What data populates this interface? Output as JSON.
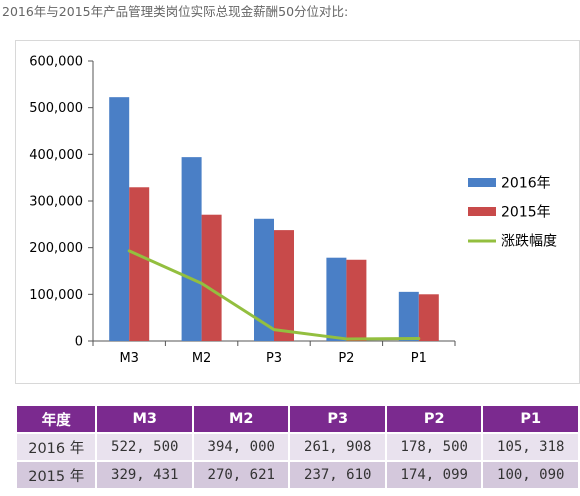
{
  "caption": "2016年与2015年产品管理类岗位实际总现金薪酬50分位对比:",
  "colors": {
    "s2016": "#4a7fc6",
    "s2015": "#c84a4a",
    "change": "#93bf3f",
    "table_header": "#7b2a8f"
  },
  "chart_data": {
    "type": "bar",
    "categories": [
      "M3",
      "M2",
      "P3",
      "P2",
      "P1"
    ],
    "series": [
      {
        "name": "2016年",
        "values": [
          522500,
          394000,
          261908,
          178500,
          105318
        ]
      },
      {
        "name": "2015年",
        "values": [
          329431,
          270621,
          237610,
          174099,
          100090
        ]
      }
    ],
    "line_series": {
      "name": "涨跌幅度",
      "values": [
        193069,
        123379,
        24298,
        4401,
        5228
      ]
    },
    "ylim": [
      0,
      600000
    ],
    "yticks": [
      "0",
      "100,000",
      "200,000",
      "300,000",
      "400,000",
      "500,000",
      "600,000"
    ],
    "legend_position": "right",
    "grid": false
  },
  "table": {
    "headers": [
      "年度",
      "M3",
      "M2",
      "P3",
      "P2",
      "P1"
    ],
    "rows": [
      [
        "2016 年",
        "522, 500",
        "394, 000",
        "261, 908",
        "178, 500",
        "105, 318"
      ],
      [
        "2015 年",
        "329, 431",
        "270, 621",
        "237, 610",
        "174, 099",
        "100, 090"
      ]
    ]
  }
}
